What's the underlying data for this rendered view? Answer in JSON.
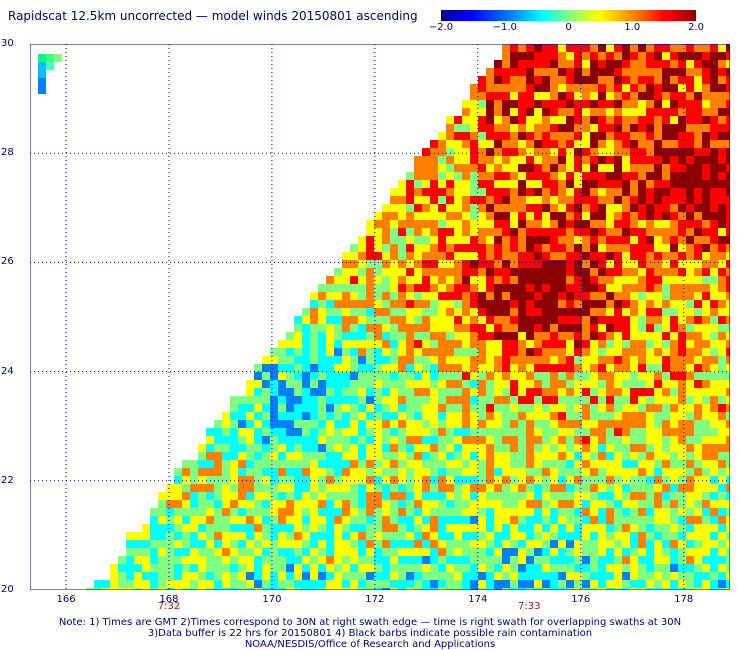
{
  "title": "Rapidscat 12.5km uncorrected — model winds 20150801 ascending",
  "colorbar": {
    "ticks": [
      "−2.0",
      "−1.0",
      "0",
      "1.0",
      "2.0"
    ],
    "colors": [
      "#00008b",
      "#0000ff",
      "#0080ff",
      "#00ffff",
      "#80ff80",
      "#ffff00",
      "#ff8000",
      "#ff0000",
      "#8b0000"
    ]
  },
  "map": {
    "lat_labels": [
      "30",
      "28",
      "26",
      "24",
      "22",
      "20"
    ],
    "lon_labels": [
      "166",
      "168",
      "170",
      "172",
      "174",
      "176",
      "178"
    ],
    "lat_range": [
      20,
      30
    ],
    "lon_range": [
      165.3,
      178.9
    ],
    "grid": "dotted"
  },
  "swath_times": [
    {
      "lon": 168,
      "label": "7:32"
    },
    {
      "lon": 175,
      "label": "7:33"
    }
  ],
  "notes": {
    "line1": "Note: 1) Times are GMT 2)Times correspond to 30N at right swath edge — time is right swath for overlapping swaths at 30N",
    "line2": "3)Data buffer is 22 hrs for 20150801 4) Black barbs indicate possible rain contamination",
    "line3": "NOAA/NESDIS/Office of Research and Applications"
  }
}
